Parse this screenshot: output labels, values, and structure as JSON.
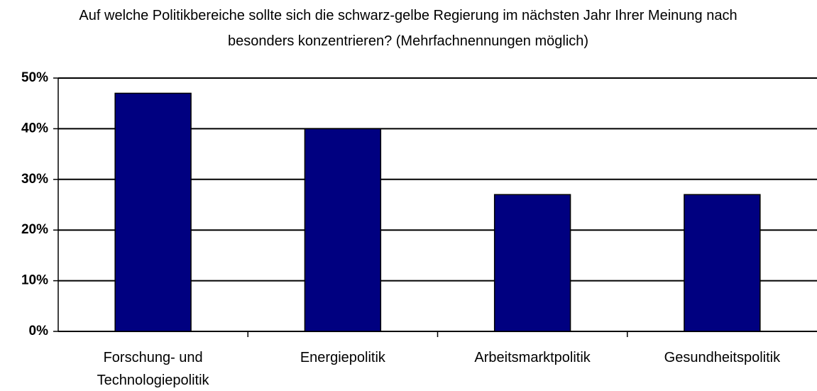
{
  "chart_data": {
    "type": "bar",
    "title": "Auf welche Politikbereiche sollte sich die schwarz-gelbe Regierung im nächsten Jahr Ihrer Meinung nach besonders konzentrieren? (Mehrfachnennungen möglich)",
    "categories": [
      "Forschung- und Technologiepolitik",
      "Energiepolitik",
      "Arbeitsmarktpolitik",
      "Gesundheitspolitik"
    ],
    "values": [
      47,
      40,
      27,
      27
    ],
    "color": "#000080",
    "ylim": [
      0,
      50
    ],
    "yticks": [
      {
        "value": 0,
        "label": "0%"
      },
      {
        "value": 10,
        "label": "10%"
      },
      {
        "value": 20,
        "label": "20%"
      },
      {
        "value": 30,
        "label": "30%"
      },
      {
        "value": 40,
        "label": "40%"
      },
      {
        "value": 50,
        "label": "50%"
      }
    ],
    "grid": true
  }
}
